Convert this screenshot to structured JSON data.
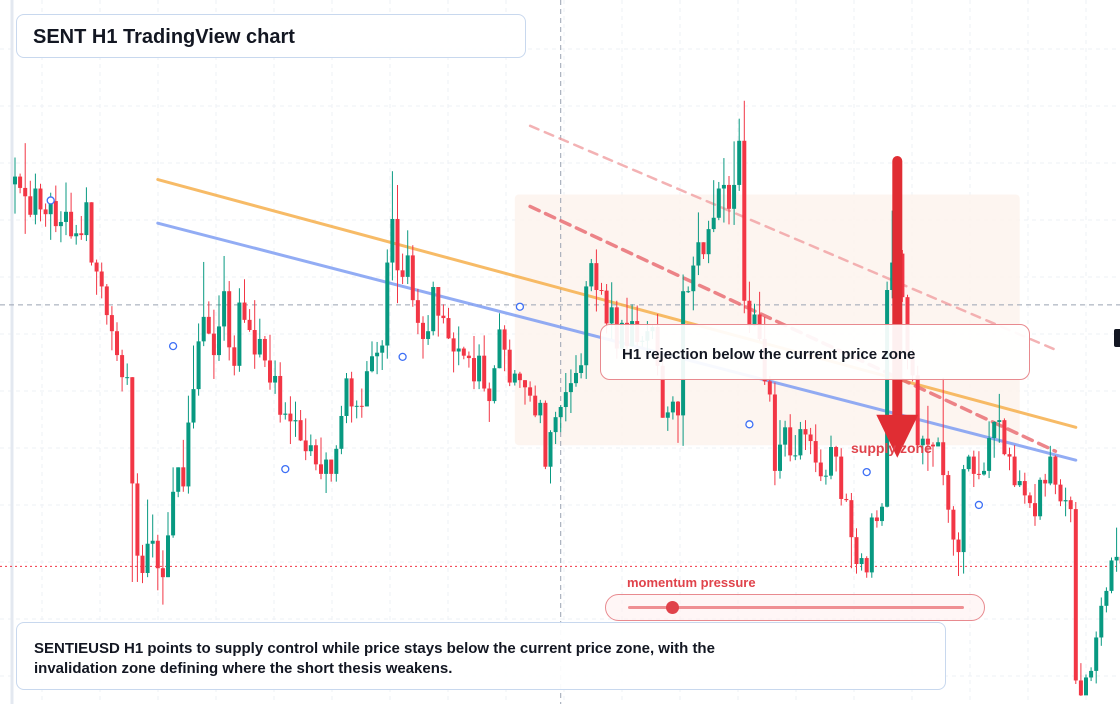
{
  "title": "SENT H1 TradingView chart",
  "note": "SENTIEUSD H1 points to supply control while price stays below the current price zone, with the invalidation zone defining where the short thesis weakens.",
  "callout": "H1 rejection below the current price zone",
  "supply_label": "supply zone",
  "momentum_label": "momentum pressure",
  "momentum_level": 0.08,
  "colors": {
    "up": "#089981",
    "down": "#f23645",
    "accent": "#e0434b",
    "orange_trend": "#f6b04d",
    "blue_trend": "#7f9ef3",
    "zone_fill": "#fdf3ec"
  },
  "chart_data": {
    "type": "candlestick",
    "title": "SENT H1 TradingView chart",
    "timeframe": "H1",
    "ylim": [
      0,
      100
    ],
    "grid": true,
    "price_line": 64.5,
    "dotted_line": 20.7,
    "crosshair_x_index": 107,
    "candles": [
      [
        84.7,
        86.0,
        79.8,
        89.2
      ],
      [
        86.0,
        84.1,
        83.2,
        86.5
      ],
      [
        84.1,
        82.7,
        76.4,
        91.6
      ],
      [
        82.7,
        79.6,
        79.2,
        85.3
      ],
      [
        79.6,
        84.0,
        78.0,
        86.5
      ],
      [
        84.0,
        80.5,
        78.5,
        84.8
      ],
      [
        80.5,
        79.7,
        77.6,
        81.5
      ],
      [
        79.7,
        81.9,
        75.4,
        83.3
      ],
      [
        81.9,
        77.7,
        76.7,
        84.5
      ],
      [
        77.7,
        78.4,
        75.0,
        80.2
      ],
      [
        78.4,
        80.1,
        76.2,
        85.0
      ],
      [
        80.1,
        76.0,
        75.6,
        83.3
      ],
      [
        76.0,
        76.5,
        74.6,
        77.9
      ],
      [
        76.5,
        76.2,
        75.4,
        79.4
      ],
      [
        76.2,
        81.7,
        75.2,
        84.2
      ],
      [
        81.7,
        71.6,
        71.1,
        81.7
      ],
      [
        71.6,
        70.1,
        66.2,
        72.1
      ],
      [
        70.1,
        67.6,
        65.6,
        71.6
      ],
      [
        67.6,
        62.8,
        61.2,
        68.0
      ],
      [
        62.8,
        60.1,
        56.9,
        64.3
      ],
      [
        60.1,
        56.1,
        55.1,
        61.6
      ],
      [
        56.1,
        52.4,
        50.0,
        57.0
      ],
      [
        52.4,
        52.4,
        51.1,
        54.7
      ],
      [
        52.4,
        34.6,
        18.1,
        52.4
      ],
      [
        34.6,
        22.5,
        18.1,
        36.3
      ],
      [
        22.5,
        19.6,
        17.9,
        24.3
      ],
      [
        19.6,
        24.5,
        18.9,
        31.9
      ],
      [
        24.5,
        25.0,
        22.2,
        29.4
      ],
      [
        25.0,
        20.4,
        16.7,
        26.0
      ],
      [
        20.4,
        18.9,
        14.3,
        23.4
      ],
      [
        18.9,
        25.9,
        18.9,
        29.8
      ],
      [
        25.9,
        33.2,
        25.5,
        37.3
      ],
      [
        33.2,
        37.3,
        32.3,
        37.3
      ],
      [
        37.3,
        34.1,
        33.2,
        41.9
      ],
      [
        34.1,
        44.8,
        32.9,
        49.3
      ],
      [
        44.8,
        50.4,
        43.8,
        57.7
      ],
      [
        50.4,
        58.4,
        49.3,
        61.4
      ],
      [
        58.4,
        62.5,
        57.6,
        71.7
      ],
      [
        62.5,
        59.7,
        59.6,
        65.1
      ],
      [
        59.7,
        56.1,
        52.1,
        63.7
      ],
      [
        56.1,
        60.9,
        55.1,
        66.1
      ],
      [
        60.9,
        66.8,
        58.5,
        72.7
      ],
      [
        66.8,
        57.4,
        55.2,
        68.5
      ],
      [
        57.4,
        54.3,
        52.7,
        59.4
      ],
      [
        54.3,
        64.9,
        53.3,
        67.3
      ],
      [
        64.9,
        62.0,
        61.5,
        68.8
      ],
      [
        62.0,
        60.3,
        60.0,
        63.8
      ],
      [
        60.3,
        56.2,
        53.8,
        65.3
      ],
      [
        56.2,
        58.8,
        55.7,
        62.2
      ],
      [
        58.8,
        55.2,
        54.1,
        59.3
      ],
      [
        55.2,
        51.5,
        50.3,
        59.5
      ],
      [
        51.5,
        52.6,
        49.6,
        55.2
      ],
      [
        52.6,
        46.1,
        44.8,
        54.9
      ],
      [
        46.1,
        46.3,
        45.3,
        48.2
      ],
      [
        46.3,
        45.0,
        41.2,
        49.2
      ],
      [
        45.0,
        45.2,
        42.4,
        48.3
      ],
      [
        45.2,
        41.8,
        41.7,
        46.9
      ],
      [
        41.8,
        40.0,
        38.5,
        45.5
      ],
      [
        40.0,
        41.0,
        39.2,
        42.8
      ],
      [
        41.0,
        37.8,
        36.8,
        42.0
      ],
      [
        37.8,
        36.2,
        35.3,
        42.3
      ],
      [
        36.2,
        38.6,
        33.0,
        39.8
      ],
      [
        38.6,
        36.2,
        34.9,
        38.6
      ],
      [
        36.2,
        40.4,
        34.9,
        41.0
      ],
      [
        40.4,
        45.9,
        39.5,
        47.6
      ],
      [
        45.9,
        52.2,
        44.7,
        53.1
      ],
      [
        52.2,
        47.5,
        44.8,
        53.3
      ],
      [
        47.5,
        47.6,
        45.5,
        48.5
      ],
      [
        47.6,
        47.5,
        45.6,
        50.5
      ],
      [
        47.5,
        53.4,
        47.5,
        55.1
      ],
      [
        53.4,
        55.9,
        53.2,
        58.4
      ],
      [
        55.9,
        56.5,
        52.9,
        58.3
      ],
      [
        56.5,
        57.7,
        53.6,
        58.6
      ],
      [
        57.7,
        71.6,
        55.5,
        73.8
      ],
      [
        71.6,
        78.9,
        68.6,
        86.9
      ],
      [
        78.9,
        70.3,
        64.8,
        84.6
      ],
      [
        70.3,
        69.2,
        68.0,
        73.1
      ],
      [
        69.2,
        72.8,
        68.0,
        77.0
      ],
      [
        72.8,
        65.3,
        64.2,
        74.5
      ],
      [
        65.3,
        61.5,
        59.6,
        67.2
      ],
      [
        61.5,
        58.8,
        55.5,
        62.6
      ],
      [
        58.8,
        60.1,
        57.8,
        62.8
      ],
      [
        60.1,
        67.5,
        59.4,
        68.4
      ],
      [
        67.5,
        62.7,
        59.2,
        67.5
      ],
      [
        62.7,
        62.3,
        61.4,
        64.6
      ],
      [
        62.3,
        58.9,
        58.8,
        64.0
      ],
      [
        58.9,
        56.7,
        53.2,
        59.9
      ],
      [
        56.7,
        57.2,
        54.4,
        60.9
      ],
      [
        57.2,
        56.0,
        55.4,
        57.5
      ],
      [
        56.0,
        55.6,
        54.0,
        56.7
      ],
      [
        55.6,
        51.7,
        50.4,
        59.3
      ],
      [
        51.7,
        56.0,
        50.4,
        57.9
      ],
      [
        56.0,
        50.5,
        50.0,
        59.4
      ],
      [
        50.5,
        48.4,
        44.9,
        51.5
      ],
      [
        48.4,
        53.9,
        48.0,
        54.4
      ],
      [
        53.9,
        60.4,
        53.9,
        63.1
      ],
      [
        60.4,
        57.0,
        53.4,
        61.1
      ],
      [
        57.0,
        51.5,
        50.9,
        58.7
      ],
      [
        51.5,
        53.0,
        51.0,
        53.6
      ],
      [
        53.0,
        51.9,
        50.6,
        53.3
      ],
      [
        51.9,
        50.7,
        47.8,
        51.9
      ],
      [
        50.7,
        49.3,
        48.3,
        51.7
      ],
      [
        49.3,
        46.0,
        45.7,
        51.0
      ],
      [
        46.0,
        48.1,
        44.7,
        48.6
      ],
      [
        48.1,
        37.4,
        37.0,
        48.5
      ],
      [
        37.4,
        43.2,
        34.6,
        43.5
      ],
      [
        43.2,
        45.7,
        41.2,
        46.6
      ],
      [
        45.7,
        47.4,
        43.2,
        47.7
      ],
      [
        47.4,
        49.9,
        45.0,
        53.1
      ],
      [
        49.9,
        51.4,
        46.4,
        53.7
      ],
      [
        51.4,
        53.1,
        50.8,
        56.1
      ],
      [
        53.1,
        54.4,
        52.2,
        56.4
      ],
      [
        54.4,
        67.6,
        52.1,
        68.5
      ],
      [
        67.6,
        71.5,
        66.8,
        72.2
      ],
      [
        71.5,
        67.0,
        63.4,
        73.8
      ],
      [
        67.0,
        66.9,
        66.2,
        68.2
      ],
      [
        66.9,
        61.4,
        59.7,
        68.0
      ],
      [
        61.4,
        64.1,
        58.8,
        68.3
      ],
      [
        64.1,
        57.2,
        55.5,
        65.2
      ],
      [
        57.2,
        61.5,
        57.0,
        62.0
      ],
      [
        61.5,
        57.6,
        56.7,
        65.7
      ],
      [
        57.6,
        61.8,
        57.5,
        64.6
      ],
      [
        61.8,
        58.3,
        57.7,
        64.4
      ],
      [
        58.3,
        58.5,
        57.5,
        59.3
      ],
      [
        58.5,
        60.1,
        56.5,
        61.8
      ],
      [
        60.1,
        60.8,
        58.8,
        61.1
      ],
      [
        60.8,
        54.3,
        52.7,
        63.0
      ],
      [
        54.3,
        45.6,
        45.6,
        55.6
      ],
      [
        45.6,
        46.5,
        43.4,
        47.5
      ],
      [
        46.5,
        48.3,
        45.3,
        49.2
      ],
      [
        48.3,
        46.0,
        41.4,
        48.4
      ],
      [
        46.0,
        66.8,
        40.9,
        69.6
      ],
      [
        66.8,
        66.8,
        66.5,
        67.6
      ],
      [
        66.8,
        71.1,
        63.6,
        72.6
      ],
      [
        71.1,
        75.0,
        69.5,
        80.0
      ],
      [
        75.0,
        73.0,
        72.2,
        75.0
      ],
      [
        73.0,
        77.2,
        71.5,
        78.6
      ],
      [
        77.2,
        79.1,
        76.7,
        85.4
      ],
      [
        79.1,
        84.0,
        78.7,
        85.1
      ],
      [
        84.0,
        84.6,
        78.3,
        89.1
      ],
      [
        84.6,
        80.6,
        78.0,
        86.1
      ],
      [
        80.6,
        84.6,
        77.9,
        91.9
      ],
      [
        84.6,
        92.0,
        83.6,
        95.7
      ],
      [
        92.0,
        65.2,
        63.1,
        98.7
      ],
      [
        65.2,
        61.0,
        59.8,
        68.4
      ],
      [
        61.0,
        62.9,
        60.9,
        64.7
      ],
      [
        62.9,
        58.8,
        58.5,
        66.7
      ],
      [
        58.8,
        51.7,
        51.1,
        62.5
      ],
      [
        51.7,
        49.5,
        48.3,
        52.6
      ],
      [
        49.5,
        36.7,
        34.3,
        51.5
      ],
      [
        36.7,
        41.1,
        35.4,
        45.2
      ],
      [
        41.1,
        44.0,
        39.1,
        45.1
      ],
      [
        44.0,
        39.3,
        38.3,
        46.2
      ],
      [
        39.3,
        39.3,
        38.5,
        42.7
      ],
      [
        39.3,
        43.7,
        38.6,
        44.9
      ],
      [
        43.7,
        42.8,
        40.2,
        45.2
      ],
      [
        42.8,
        41.7,
        39.5,
        43.9
      ],
      [
        41.7,
        38.1,
        36.5,
        44.5
      ],
      [
        38.1,
        35.8,
        35.0,
        40.3
      ],
      [
        35.8,
        35.9,
        34.4,
        36.9
      ],
      [
        35.9,
        40.7,
        35.3,
        42.6
      ],
      [
        40.7,
        39.1,
        36.6,
        40.9
      ],
      [
        39.1,
        32.0,
        30.9,
        40.5
      ],
      [
        32.0,
        31.8,
        31.5,
        32.9
      ],
      [
        31.8,
        25.6,
        20.4,
        33.0
      ],
      [
        25.6,
        21.1,
        19.5,
        27.1
      ],
      [
        21.1,
        22.1,
        20.0,
        22.9
      ],
      [
        22.1,
        19.7,
        18.8,
        22.4
      ],
      [
        19.7,
        28.9,
        18.8,
        29.6
      ],
      [
        28.9,
        28.3,
        27.2,
        30.1
      ],
      [
        28.3,
        30.7,
        27.5,
        31.3
      ],
      [
        30.7,
        67.0,
        30.6,
        68.4
      ],
      [
        67.0,
        71.6,
        65.6,
        80.3
      ],
      [
        71.6,
        73.1,
        70.8,
        73.6
      ],
      [
        73.1,
        65.8,
        65.0,
        73.7
      ],
      [
        65.8,
        56.2,
        53.7,
        66.2
      ],
      [
        56.2,
        52.7,
        51.7,
        57.1
      ],
      [
        52.7,
        41.0,
        40.5,
        54.3
      ],
      [
        41.0,
        42.1,
        37.8,
        42.6
      ],
      [
        42.1,
        41.1,
        36.7,
        47.6
      ],
      [
        41.1,
        40.8,
        37.4,
        41.5
      ],
      [
        40.8,
        41.5,
        40.8,
        42.3
      ],
      [
        41.5,
        36.0,
        34.3,
        52.3
      ],
      [
        36.0,
        30.2,
        28.0,
        36.7
      ],
      [
        30.2,
        25.2,
        22.5,
        30.8
      ],
      [
        25.2,
        23.1,
        19.1,
        26.4
      ],
      [
        23.1,
        37.0,
        19.5,
        37.7
      ],
      [
        37.0,
        39.1,
        36.6,
        39.4
      ],
      [
        39.1,
        36.2,
        34.0,
        40.1
      ],
      [
        36.2,
        36.1,
        35.3,
        40.0
      ],
      [
        36.1,
        36.7,
        35.9,
        38.1
      ],
      [
        36.7,
        42.2,
        35.5,
        45.0
      ],
      [
        42.2,
        44.9,
        38.9,
        45.0
      ],
      [
        44.9,
        45.2,
        41.4,
        49.6
      ],
      [
        45.2,
        39.5,
        39.3,
        45.5
      ],
      [
        39.5,
        39.1,
        36.8,
        40.6
      ],
      [
        39.1,
        34.3,
        34.0,
        41.0
      ],
      [
        34.3,
        35.0,
        34.0,
        36.8
      ],
      [
        35.0,
        32.6,
        31.2,
        36.4
      ],
      [
        32.6,
        31.3,
        30.5,
        33.1
      ],
      [
        31.3,
        29.1,
        27.5,
        34.5
      ],
      [
        29.1,
        35.2,
        28.5,
        35.6
      ],
      [
        35.2,
        34.6,
        32.4,
        36.2
      ],
      [
        34.6,
        39.1,
        34.3,
        40.9
      ],
      [
        39.1,
        34.4,
        32.8,
        39.3
      ],
      [
        34.4,
        31.6,
        30.8,
        35.3
      ],
      [
        31.6,
        31.8,
        29.1,
        33.9
      ],
      [
        31.8,
        30.3,
        28.1,
        32.4
      ],
      [
        30.3,
        1.6,
        1.0,
        31.5
      ],
      [
        1.6,
        -0.9,
        -1.0,
        4.5
      ],
      [
        -0.9,
        2.1,
        -0.1,
        2.6
      ],
      [
        2.1,
        3.2,
        1.5,
        3.8
      ],
      [
        3.2,
        8.8,
        1.1,
        9.8
      ],
      [
        8.8,
        14.1,
        7.4,
        15.5
      ],
      [
        14.1,
        16.6,
        13.0,
        17.2
      ],
      [
        16.6,
        21.7,
        16.2,
        22.2
      ],
      [
        21.7,
        22.3,
        19.8,
        27.2
      ],
      [
        22.3,
        21.2,
        19.4,
        24.6
      ],
      [
        21.2,
        20.5,
        18.1,
        21.8
      ]
    ],
    "trendlines": [
      {
        "name": "",
        "color": "orange",
        "from": [
          28,
          85.5
        ],
        "to": [
          208,
          44.0
        ]
      },
      {
        "name": "",
        "color": "blue",
        "from": [
          28,
          78.2
        ],
        "to": [
          208,
          38.5
        ]
      },
      {
        "name": "",
        "color": "red-dashed",
        "from": [
          101,
          81.0
        ],
        "to": [
          204,
          40.0
        ]
      },
      {
        "name": "",
        "color": "red-dashed-light",
        "from": [
          101,
          94.5
        ],
        "to": [
          204,
          57.0
        ]
      }
    ],
    "supply_zone": {
      "x_range": [
        98,
        197
      ],
      "y_range": [
        41.0,
        83.0
      ]
    },
    "arrow": {
      "from_y": 88.6,
      "to_y": 38.9,
      "x_index": 173
    },
    "markers": [
      [
        7,
        82.0
      ],
      [
        31,
        57.6
      ],
      [
        53,
        37.0
      ],
      [
        76,
        55.8
      ],
      [
        99,
        64.2
      ],
      [
        144,
        44.5
      ],
      [
        167,
        36.5
      ],
      [
        189,
        31.0
      ]
    ]
  }
}
